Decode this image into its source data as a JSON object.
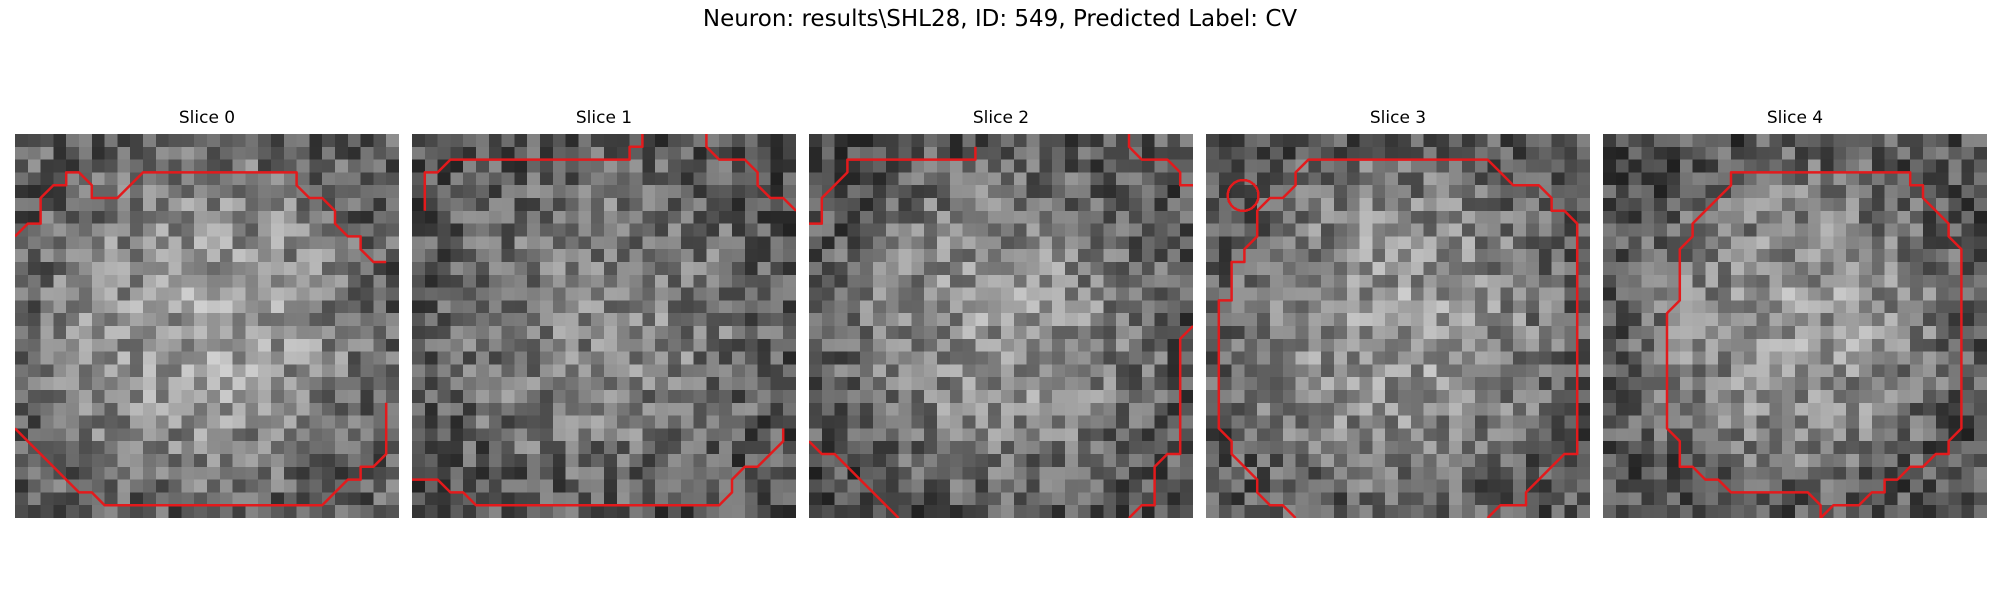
{
  "figure": {
    "title": "Neuron: results\\SHL28, ID: 549, Predicted Label: CV"
  },
  "contour_color": "#e31a1c",
  "panels": [
    {
      "title": "Slice 0",
      "seed": 11,
      "center_bright": 0.62,
      "rim_dark": 0.38,
      "contour": [
        [
          [
            0,
            8
          ],
          [
            1,
            7
          ],
          [
            2,
            7
          ],
          [
            2,
            5
          ],
          [
            3,
            4
          ],
          [
            4,
            4
          ],
          [
            4,
            3
          ],
          [
            5,
            3
          ],
          [
            6,
            4
          ],
          [
            6,
            5
          ],
          [
            8,
            5
          ],
          [
            9,
            4
          ],
          [
            10,
            3
          ],
          [
            20,
            3
          ],
          [
            22,
            3
          ],
          [
            22,
            4
          ],
          [
            23,
            5
          ],
          [
            24,
            5
          ],
          [
            25,
            6
          ],
          [
            25,
            7
          ],
          [
            26,
            8
          ],
          [
            27,
            8
          ],
          [
            27,
            9
          ],
          [
            28,
            10
          ],
          [
            29,
            10
          ]
        ],
        [
          [
            0,
            23
          ],
          [
            1,
            24
          ],
          [
            2,
            25
          ],
          [
            3,
            26
          ],
          [
            4,
            27
          ],
          [
            5,
            28
          ],
          [
            6,
            28
          ],
          [
            7,
            29
          ],
          [
            8,
            29
          ],
          [
            8,
            29
          ],
          [
            10,
            29
          ],
          [
            24,
            29
          ],
          [
            25,
            28
          ],
          [
            25,
            28
          ],
          [
            26,
            27
          ],
          [
            27,
            27
          ],
          [
            27,
            26
          ],
          [
            28,
            26
          ],
          [
            29,
            25
          ],
          [
            29,
            24
          ],
          [
            29,
            21
          ]
        ]
      ]
    },
    {
      "title": "Slice 1",
      "seed": 23,
      "center_bright": 0.52,
      "rim_dark": 0.34,
      "contour": [
        [
          [
            1,
            6
          ],
          [
            1,
            3
          ],
          [
            2,
            3
          ],
          [
            3,
            2
          ],
          [
            12,
            2
          ],
          [
            17,
            2
          ],
          [
            17,
            1
          ],
          [
            18,
            1
          ],
          [
            18,
            0
          ]
        ],
        [
          [
            23,
            0
          ],
          [
            23,
            1
          ],
          [
            24,
            2
          ],
          [
            26,
            2
          ],
          [
            27,
            3
          ],
          [
            27,
            4
          ],
          [
            28,
            5
          ],
          [
            29,
            5
          ],
          [
            30,
            6
          ]
        ],
        [
          [
            0,
            27
          ],
          [
            2,
            27
          ],
          [
            3,
            28
          ],
          [
            4,
            28
          ],
          [
            5,
            29
          ],
          [
            20,
            29
          ],
          [
            24,
            29
          ],
          [
            25,
            28
          ],
          [
            25,
            27
          ],
          [
            26,
            26
          ],
          [
            27,
            26
          ],
          [
            28,
            25
          ],
          [
            29,
            24
          ],
          [
            29,
            23
          ]
        ]
      ]
    },
    {
      "title": "Slice 2",
      "seed": 37,
      "center_bright": 0.58,
      "rim_dark": 0.33,
      "contour": [
        [
          [
            0,
            7
          ],
          [
            1,
            7
          ],
          [
            1,
            5
          ],
          [
            2,
            4
          ],
          [
            3,
            3
          ],
          [
            3,
            2
          ],
          [
            4,
            2
          ],
          [
            13,
            2
          ],
          [
            13,
            1
          ]
        ],
        [
          [
            25,
            0
          ],
          [
            25,
            1
          ],
          [
            26,
            2
          ],
          [
            28,
            2
          ],
          [
            29,
            3
          ],
          [
            29,
            4
          ],
          [
            30,
            4
          ]
        ],
        [
          [
            0,
            24
          ],
          [
            1,
            25
          ],
          [
            2,
            25
          ],
          [
            3,
            26
          ],
          [
            4,
            27
          ],
          [
            5,
            28
          ],
          [
            6,
            29
          ],
          [
            7,
            30
          ]
        ],
        [
          [
            30,
            15
          ],
          [
            29,
            16
          ],
          [
            29,
            25
          ],
          [
            28,
            25
          ],
          [
            27,
            26
          ],
          [
            27,
            29
          ],
          [
            26,
            29
          ],
          [
            25,
            30
          ]
        ]
      ]
    },
    {
      "title": "Slice 3",
      "seed": 53,
      "center_bright": 0.6,
      "rim_dark": 0.36,
      "contour": [
        [
          [
            7,
            30
          ],
          [
            6,
            29
          ],
          [
            5,
            29
          ],
          [
            4,
            28
          ],
          [
            4,
            27
          ],
          [
            3,
            26
          ],
          [
            2,
            25
          ],
          [
            2,
            24
          ],
          [
            1,
            23
          ],
          [
            1,
            22
          ],
          [
            1,
            14
          ],
          [
            1,
            13
          ],
          [
            2,
            13
          ],
          [
            2,
            10
          ],
          [
            3,
            10
          ],
          [
            3,
            9
          ],
          [
            4,
            8
          ],
          [
            4,
            6
          ],
          [
            5,
            5
          ],
          [
            6,
            5
          ],
          [
            7,
            4
          ],
          [
            7,
            3
          ],
          [
            8,
            2
          ],
          [
            22,
            2
          ],
          [
            23,
            3
          ],
          [
            24,
            4
          ],
          [
            26,
            4
          ],
          [
            27,
            5
          ],
          [
            27,
            6
          ],
          [
            28,
            6
          ],
          [
            29,
            7
          ],
          [
            29,
            25
          ],
          [
            28,
            25
          ],
          [
            27,
            26
          ],
          [
            26,
            27
          ],
          [
            25,
            28
          ],
          [
            25,
            29
          ],
          [
            24,
            29
          ],
          [
            23,
            29
          ],
          [
            22,
            30
          ]
        ],
        [
          [
            2.9,
            4.8
          ],
          [
            2.9,
            4.8
          ]
        ]
      ]
    },
    {
      "title": "Slice 4",
      "seed": 71,
      "center_bright": 0.6,
      "rim_dark": 0.33,
      "contour": [
        [
          [
            17,
            30
          ],
          [
            18,
            29
          ],
          [
            20,
            29
          ],
          [
            21,
            28
          ],
          [
            22,
            28
          ],
          [
            22,
            27
          ],
          [
            23,
            27
          ],
          [
            24,
            26
          ],
          [
            25,
            26
          ],
          [
            26,
            25
          ],
          [
            27,
            25
          ],
          [
            27,
            24
          ],
          [
            28,
            23
          ],
          [
            28,
            9
          ],
          [
            27,
            8
          ],
          [
            27,
            7
          ],
          [
            26,
            6
          ],
          [
            25,
            5
          ],
          [
            25,
            4
          ],
          [
            24,
            4
          ],
          [
            24,
            3
          ],
          [
            10,
            3
          ],
          [
            10,
            4
          ],
          [
            9,
            5
          ],
          [
            8,
            6
          ],
          [
            7,
            7
          ],
          [
            7,
            8
          ],
          [
            6,
            9
          ],
          [
            6,
            13
          ],
          [
            5,
            14
          ],
          [
            5,
            23
          ],
          [
            6,
            24
          ],
          [
            6,
            26
          ],
          [
            7,
            26
          ],
          [
            8,
            27
          ],
          [
            9,
            27
          ],
          [
            10,
            28
          ],
          [
            16,
            28
          ],
          [
            17,
            29
          ],
          [
            17,
            30
          ]
        ]
      ]
    }
  ]
}
